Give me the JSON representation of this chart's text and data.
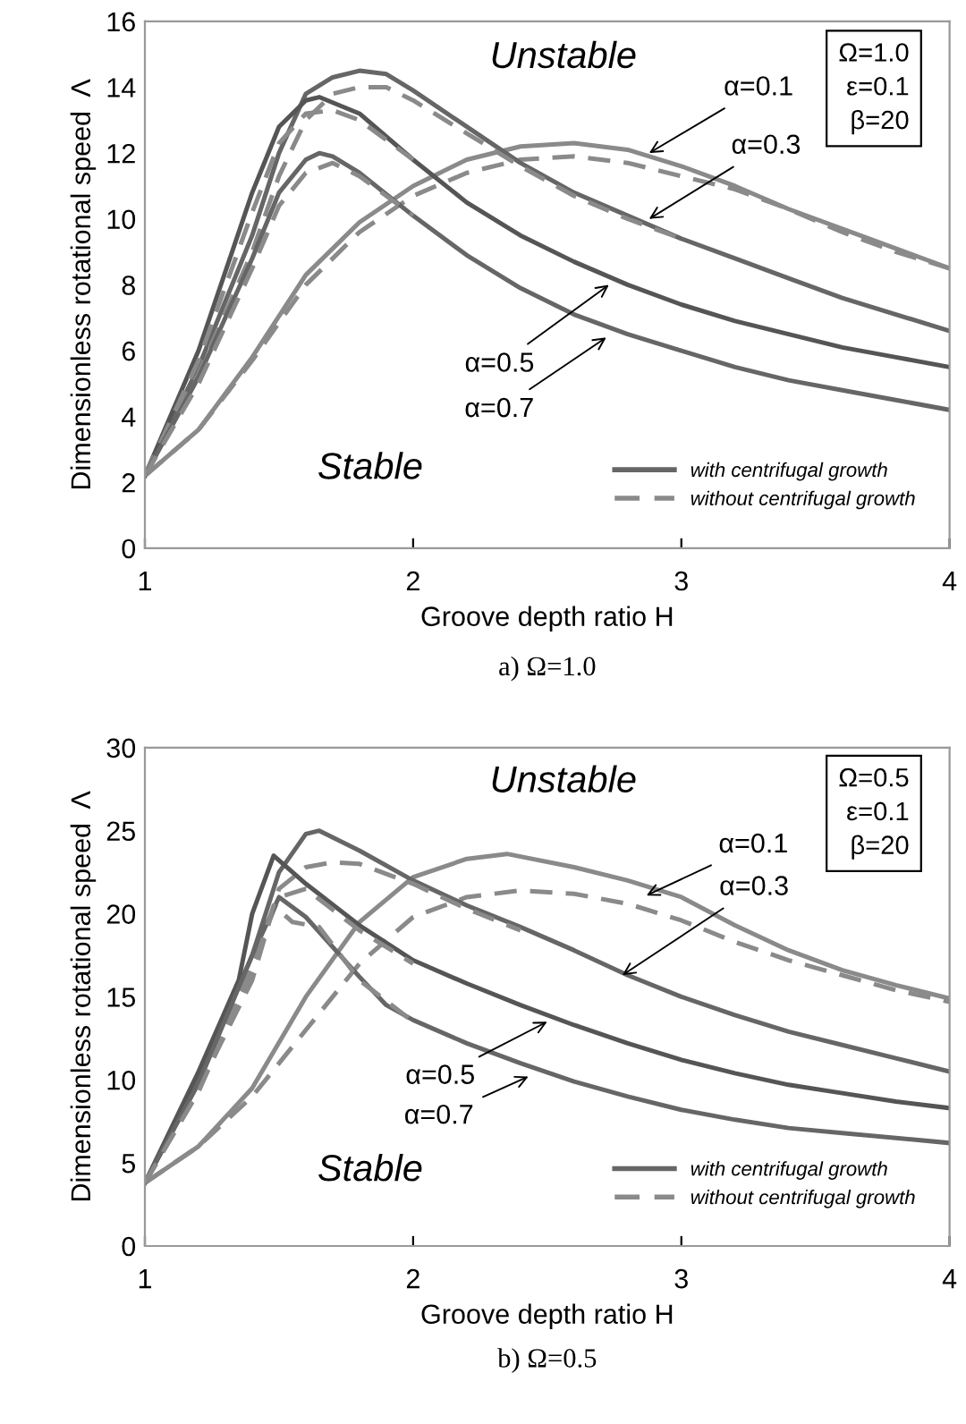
{
  "chart_data": [
    {
      "type": "line",
      "title": "a) Ω=1.0",
      "xlabel": "Groove depth ratio H",
      "ylabel": "Dimensionless rotational speed  Λ",
      "xlim": [
        1,
        4
      ],
      "xticks": [
        1,
        2,
        3,
        4
      ],
      "ylim": [
        0,
        16
      ],
      "yticks": [
        0,
        2,
        4,
        6,
        8,
        10,
        12,
        14,
        16
      ],
      "grid": false,
      "legend": "bottom right",
      "series": [
        {
          "color": "#8a8a8a",
          "line_style": "solid",
          "x": [
            1.0,
            1.2,
            1.4,
            1.6,
            1.8,
            2.0,
            2.2,
            2.4,
            2.6,
            2.8,
            3.0,
            3.2,
            3.4,
            3.6,
            3.8,
            4.0
          ],
          "values": [
            2.2,
            3.6,
            5.8,
            8.3,
            9.9,
            11.0,
            11.8,
            12.2,
            12.3,
            12.1,
            11.6,
            11.0,
            10.3,
            9.7,
            9.1,
            8.5
          ]
        },
        {
          "color": "#8a8a8a",
          "line_style": "dashed",
          "x": [
            1.0,
            1.2,
            1.4,
            1.6,
            1.8,
            2.0,
            2.2,
            2.4,
            2.6,
            2.8,
            3.0,
            3.2,
            3.4,
            3.6,
            3.8,
            4.0
          ],
          "values": [
            2.2,
            3.6,
            5.7,
            8.0,
            9.6,
            10.7,
            11.4,
            11.8,
            11.9,
            11.7,
            11.3,
            10.9,
            10.3,
            9.6,
            9.0,
            8.5
          ]
        },
        {
          "name": "with centrifugal growth",
          "color": "#666666",
          "line_style": "solid",
          "x": [
            1.0,
            1.2,
            1.4,
            1.5,
            1.6,
            1.7,
            1.8,
            1.9,
            2.0,
            2.2,
            2.4,
            2.6,
            2.8,
            3.0,
            3.2,
            3.4,
            3.6,
            3.8,
            4.0
          ],
          "values": [
            2.2,
            5.5,
            9.5,
            12.0,
            13.8,
            14.3,
            14.5,
            14.4,
            13.9,
            12.8,
            11.7,
            10.8,
            10.1,
            9.4,
            8.8,
            8.2,
            7.6,
            7.1,
            6.6
          ]
        },
        {
          "name": "without centrifugal growth",
          "color": "#8a8a8a",
          "line_style": "dashed",
          "x": [
            1.0,
            1.2,
            1.4,
            1.5,
            1.6,
            1.7,
            1.8,
            1.9,
            2.0,
            2.2,
            2.4,
            2.6,
            2.8,
            3.0
          ],
          "values": [
            2.2,
            5.3,
            9.0,
            11.3,
            13.0,
            13.8,
            14.0,
            14.0,
            13.6,
            12.6,
            11.6,
            10.7,
            10.0,
            9.4
          ]
        },
        {
          "color": "#555555",
          "line_style": "solid",
          "x": [
            1.0,
            1.2,
            1.4,
            1.5,
            1.6,
            1.65,
            1.8,
            2.0,
            2.2,
            2.4,
            2.6,
            2.8,
            3.0,
            3.2,
            3.4,
            3.6,
            3.8,
            4.0
          ],
          "values": [
            2.2,
            6.0,
            10.8,
            12.8,
            13.6,
            13.7,
            13.2,
            11.8,
            10.5,
            9.5,
            8.7,
            8.0,
            7.4,
            6.9,
            6.5,
            6.1,
            5.8,
            5.5
          ]
        },
        {
          "color": "#8a8a8a",
          "line_style": "dashed",
          "x": [
            1.0,
            1.2,
            1.4,
            1.5,
            1.6,
            1.7,
            1.8,
            2.0
          ],
          "values": [
            2.2,
            5.7,
            10.2,
            12.3,
            13.2,
            13.3,
            13.0,
            11.8
          ]
        },
        {
          "color": "#666666",
          "line_style": "solid",
          "x": [
            1.0,
            1.2,
            1.4,
            1.5,
            1.6,
            1.65,
            1.7,
            1.8,
            2.0,
            2.2,
            2.4,
            2.6,
            2.8,
            3.0,
            3.2,
            3.4,
            3.6,
            3.8,
            4.0
          ],
          "values": [
            2.2,
            5.2,
            8.8,
            10.8,
            11.8,
            12.0,
            11.9,
            11.4,
            10.1,
            8.9,
            7.9,
            7.1,
            6.5,
            6.0,
            5.5,
            5.1,
            4.8,
            4.5,
            4.2
          ]
        },
        {
          "color": "#8a8a8a",
          "line_style": "dashed",
          "x": [
            1.0,
            1.2,
            1.4,
            1.5,
            1.6,
            1.7,
            1.8,
            2.0
          ],
          "values": [
            2.2,
            5.0,
            8.5,
            10.4,
            11.4,
            11.7,
            11.3,
            10.1
          ]
        }
      ],
      "annotations": [
        "Unstable",
        "Stable",
        "Ω=1.0\nε=0.1\nβ=20",
        {
          "text": "α=0.1",
          "x": 2.88,
          "y": 12.0
        },
        {
          "text": "α=0.3",
          "x": 2.88,
          "y": 10.0
        },
        {
          "text": "α=0.5",
          "x": 2.73,
          "y": 8.0
        },
        {
          "text": "α=0.7",
          "x": 2.72,
          "y": 6.4
        }
      ]
    },
    {
      "type": "line",
      "title": "b) Ω=0.5",
      "xlabel": "Groove depth ratio H",
      "ylabel": "Dimensionless rotational speed  Λ",
      "xlim": [
        1,
        4
      ],
      "xticks": [
        1,
        2,
        3,
        4
      ],
      "ylim": [
        0,
        30
      ],
      "yticks": [
        0,
        5,
        10,
        15,
        20,
        25,
        30
      ],
      "grid": false,
      "legend": "bottom right",
      "series": [
        {
          "color": "#8a8a8a",
          "line_style": "solid",
          "x": [
            1.0,
            1.2,
            1.4,
            1.6,
            1.8,
            2.0,
            2.2,
            2.35,
            2.6,
            2.8,
            3.0,
            3.2,
            3.4,
            3.6,
            3.8,
            4.0
          ],
          "values": [
            3.8,
            6.0,
            9.5,
            15.0,
            19.5,
            22.2,
            23.3,
            23.6,
            22.8,
            22.0,
            21.0,
            19.3,
            17.8,
            16.6,
            15.7,
            14.9
          ]
        },
        {
          "color": "#8a8a8a",
          "line_style": "dashed",
          "x": [
            1.0,
            1.2,
            1.4,
            1.6,
            1.8,
            2.0,
            2.2,
            2.4,
            2.6,
            2.8,
            3.0,
            3.2,
            3.4,
            3.6,
            3.8,
            4.0
          ],
          "values": [
            3.8,
            6.0,
            9.0,
            13.0,
            17.0,
            19.8,
            21.0,
            21.4,
            21.2,
            20.6,
            19.6,
            18.3,
            17.2,
            16.3,
            15.4,
            14.7
          ]
        },
        {
          "name": "with centrifugal growth",
          "color": "#666666",
          "line_style": "solid",
          "x": [
            1.0,
            1.2,
            1.4,
            1.5,
            1.6,
            1.65,
            1.8,
            2.0,
            2.2,
            2.4,
            2.6,
            2.8,
            3.0,
            3.2,
            3.4,
            3.6,
            3.8,
            4.0
          ],
          "values": [
            3.8,
            10,
            17.5,
            22.5,
            24.8,
            25.0,
            23.8,
            22.0,
            20.5,
            19.2,
            17.8,
            16.3,
            15.0,
            13.9,
            12.9,
            12.1,
            11.3,
            10.5
          ]
        },
        {
          "name": "without centrifugal growth",
          "color": "#8a8a8a",
          "line_style": "dashed",
          "x": [
            1.0,
            1.2,
            1.4,
            1.5,
            1.6,
            1.7,
            1.8,
            2.0,
            2.2,
            2.4
          ],
          "values": [
            3.8,
            9.5,
            16,
            21.5,
            22.8,
            23.1,
            23.0,
            21.8,
            20.3,
            19.0
          ]
        },
        {
          "color": "#555555",
          "line_style": "solid",
          "x": [
            1.0,
            1.2,
            1.35,
            1.4,
            1.48,
            1.6,
            1.8,
            2.0,
            2.2,
            2.4,
            2.6,
            2.8,
            3.0,
            3.2,
            3.4,
            3.6,
            3.8,
            4.0
          ],
          "values": [
            3.8,
            10.5,
            16,
            20,
            23.5,
            21.8,
            19.3,
            17.2,
            15.8,
            14.5,
            13.3,
            12.2,
            11.2,
            10.4,
            9.7,
            9.2,
            8.7,
            8.3
          ]
        },
        {
          "color": "#8a8a8a",
          "line_style": "dashed",
          "x": [
            1.0,
            1.2,
            1.4,
            1.5,
            1.6,
            1.8,
            2.0
          ],
          "values": [
            3.8,
            9.5,
            17,
            21.0,
            21.5,
            19.0,
            17.0
          ]
        },
        {
          "color": "#666666",
          "line_style": "solid",
          "x": [
            1.0,
            1.2,
            1.4,
            1.5,
            1.6,
            1.8,
            1.9,
            2.0,
            2.2,
            2.4,
            2.6,
            2.8,
            3.0,
            3.2,
            3.4,
            3.6,
            3.8,
            4.0
          ],
          "values": [
            3.8,
            9.8,
            17.5,
            21.0,
            19.8,
            16.2,
            14.5,
            13.6,
            12.2,
            11.0,
            9.9,
            9.0,
            8.2,
            7.6,
            7.1,
            6.8,
            6.5,
            6.2
          ]
        },
        {
          "color": "#8a8a8a",
          "line_style": "dashed",
          "x": [
            1.0,
            1.2,
            1.4,
            1.48,
            1.55,
            1.65,
            1.8,
            2.0
          ],
          "values": [
            3.8,
            9.3,
            16.5,
            20.5,
            19.5,
            19.2,
            16.0,
            13.5
          ]
        }
      ],
      "annotations": [
        "Unstable",
        "Stable",
        "Ω=0.5\nε=0.1\nβ=20",
        {
          "text": "α=0.1",
          "x": 2.87,
          "y": 21.1
        },
        {
          "text": "α=0.3",
          "x": 2.78,
          "y": 16.3
        },
        {
          "text": "α=0.5",
          "x": 2.5,
          "y": 13.5
        },
        {
          "text": "α=0.7",
          "x": 2.43,
          "y": 10.2
        }
      ]
    }
  ]
}
